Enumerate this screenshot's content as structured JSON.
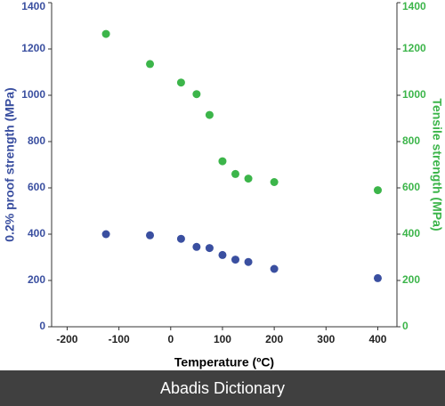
{
  "chart_data": {
    "type": "scatter",
    "xlabel": "Temperature (ºC)",
    "ylabel": "0.2% proof strength (MPa)",
    "y2label": "Tensile strength (MPa)",
    "x": [
      -125,
      -40,
      20,
      50,
      75,
      100,
      125,
      150,
      200,
      400
    ],
    "series": [
      {
        "name": "0.2% proof strength",
        "color": "#3a4fa0",
        "values": [
          400,
          395,
          380,
          345,
          340,
          310,
          290,
          280,
          250,
          210
        ]
      },
      {
        "name": "Tensile strength",
        "color": "#3cb54a",
        "axis": "y2",
        "values": [
          1265,
          1135,
          1055,
          1005,
          915,
          715,
          660,
          640,
          625,
          590
        ]
      }
    ],
    "xlim": [
      -230,
      437
    ],
    "xticks": [
      -200,
      -100,
      0,
      100,
      200,
      300,
      400
    ],
    "ylim": [
      0,
      1400
    ],
    "yticks": [
      0,
      200,
      400,
      600,
      800,
      1000,
      1200,
      1400
    ],
    "y2lim": [
      0,
      1400
    ],
    "y2ticks": [
      0,
      200,
      400,
      600,
      800,
      1000,
      1200,
      1400
    ],
    "grid": false
  },
  "footer": "Abadis Dictionary"
}
